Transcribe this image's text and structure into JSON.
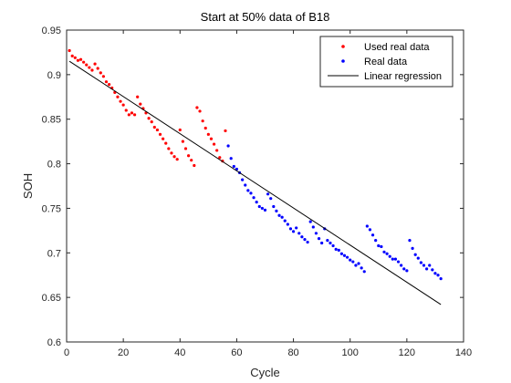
{
  "chart_data": {
    "type": "scatter",
    "title": "Start at 50% data of B18",
    "xlabel": "Cycle",
    "ylabel": "SOH",
    "xlim": [
      0,
      140
    ],
    "ylim": [
      0.6,
      0.95
    ],
    "xticks": [
      "0",
      "20",
      "40",
      "60",
      "80",
      "100",
      "120",
      "140"
    ],
    "yticks": [
      "0.6",
      "0.65",
      "0.7",
      "0.75",
      "0.8",
      "0.85",
      "0.9",
      "0.95"
    ],
    "xtick_values": [
      0,
      20,
      40,
      60,
      80,
      100,
      120,
      140
    ],
    "ytick_values": [
      0.6,
      0.65,
      0.7,
      0.75,
      0.8,
      0.85,
      0.9,
      0.95
    ],
    "grid": false,
    "legend_position": "top-right",
    "series": [
      {
        "name": "Used real data",
        "color": "#ff0000",
        "marker": "dot",
        "x": [
          1,
          2,
          3,
          4,
          5,
          6,
          7,
          8,
          9,
          10,
          11,
          12,
          13,
          14,
          15,
          16,
          17,
          18,
          19,
          20,
          21,
          22,
          23,
          24,
          25,
          26,
          27,
          28,
          29,
          30,
          31,
          32,
          33,
          34,
          35,
          36,
          37,
          38,
          39,
          40,
          41,
          42,
          43,
          44,
          45,
          46,
          47,
          48,
          49,
          50,
          51,
          52,
          53,
          54,
          55,
          56
        ],
        "y": [
          0.927,
          0.921,
          0.919,
          0.916,
          0.917,
          0.914,
          0.911,
          0.908,
          0.905,
          0.912,
          0.907,
          0.902,
          0.898,
          0.892,
          0.889,
          0.885,
          0.88,
          0.875,
          0.87,
          0.866,
          0.86,
          0.855,
          0.857,
          0.855,
          0.875,
          0.867,
          0.862,
          0.857,
          0.851,
          0.847,
          0.841,
          0.838,
          0.833,
          0.828,
          0.823,
          0.817,
          0.812,
          0.808,
          0.805,
          0.838,
          0.825,
          0.817,
          0.809,
          0.804,
          0.798,
          0.863,
          0.859,
          0.848,
          0.84,
          0.833,
          0.828,
          0.822,
          0.815,
          0.807,
          0.803,
          0.837
        ]
      },
      {
        "name": "Real data",
        "color": "#0000ff",
        "marker": "dot",
        "x": [
          57,
          58,
          59,
          60,
          61,
          62,
          63,
          64,
          65,
          66,
          67,
          68,
          69,
          70,
          71,
          72,
          73,
          74,
          75,
          76,
          77,
          78,
          79,
          80,
          81,
          82,
          83,
          84,
          85,
          86,
          87,
          88,
          89,
          90,
          91,
          92,
          93,
          94,
          95,
          96,
          97,
          98,
          99,
          100,
          101,
          102,
          103,
          104,
          105,
          106,
          107,
          108,
          109,
          110,
          111,
          112,
          113,
          114,
          115,
          116,
          117,
          118,
          119,
          120,
          121,
          122,
          123,
          124,
          125,
          126,
          127,
          128,
          129,
          130,
          131,
          132
        ],
        "y": [
          0.82,
          0.806,
          0.797,
          0.794,
          0.79,
          0.782,
          0.776,
          0.77,
          0.767,
          0.762,
          0.757,
          0.752,
          0.75,
          0.748,
          0.766,
          0.761,
          0.752,
          0.747,
          0.742,
          0.74,
          0.736,
          0.732,
          0.727,
          0.724,
          0.728,
          0.722,
          0.718,
          0.715,
          0.712,
          0.735,
          0.729,
          0.722,
          0.716,
          0.711,
          0.727,
          0.714,
          0.711,
          0.708,
          0.704,
          0.703,
          0.699,
          0.697,
          0.695,
          0.692,
          0.69,
          0.686,
          0.688,
          0.683,
          0.679,
          0.73,
          0.726,
          0.72,
          0.714,
          0.708,
          0.707,
          0.701,
          0.699,
          0.696,
          0.693,
          0.693,
          0.69,
          0.686,
          0.682,
          0.68,
          0.714,
          0.705,
          0.698,
          0.694,
          0.689,
          0.686,
          0.682,
          0.686,
          0.681,
          0.677,
          0.675,
          0.671
        ]
      },
      {
        "name": "Linear regression",
        "color": "#000000",
        "marker": "line",
        "x": [
          1,
          132
        ],
        "y": [
          0.915,
          0.642
        ]
      }
    ]
  }
}
